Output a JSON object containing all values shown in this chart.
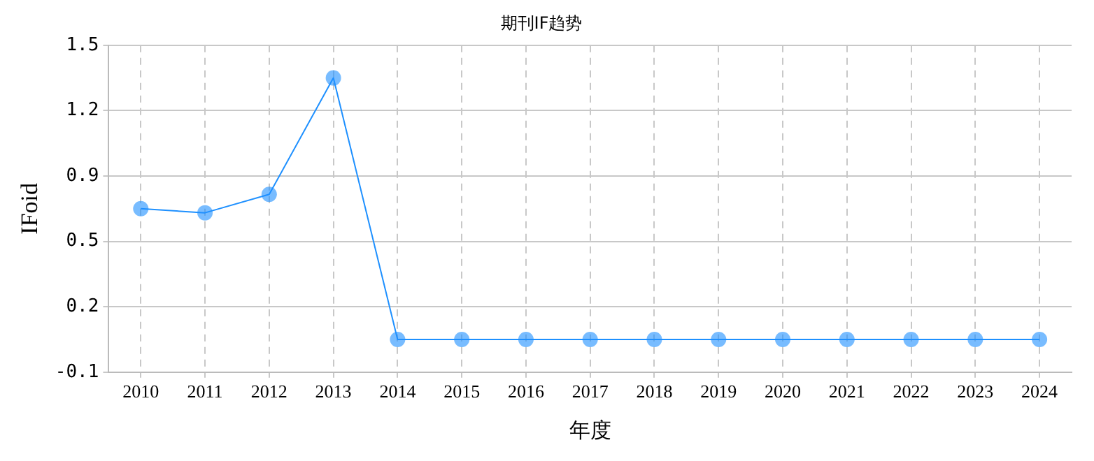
{
  "chart_data": {
    "type": "line",
    "title": "期刊IF趋势",
    "xlabel": "年度",
    "ylabel": "IFoid",
    "categories": [
      "2010",
      "2011",
      "2012",
      "2013",
      "2014",
      "2015",
      "2016",
      "2017",
      "2018",
      "2019",
      "2020",
      "2021",
      "2022",
      "2023",
      "2024"
    ],
    "series": [
      {
        "color": "#1e90ff",
        "values": [
          0.7,
          0.68,
          0.77,
          1.34,
          0.06,
          0.06,
          0.06,
          0.06,
          0.06,
          0.06,
          0.06,
          0.06,
          0.06,
          0.06,
          0.06
        ]
      }
    ],
    "ylim": [
      -0.1,
      1.5
    ],
    "yticks": [
      -0.1,
      {
        "value": 0.22,
        "label": "0.2"
      },
      {
        "value": 0.54,
        "label": "0.5"
      },
      {
        "value": 0.86,
        "label": "0.9"
      },
      {
        "value": 1.18,
        "label": "1.2"
      },
      1.5
    ],
    "grid": true,
    "marker": "circle",
    "line_style": "solid",
    "legend": false
  }
}
